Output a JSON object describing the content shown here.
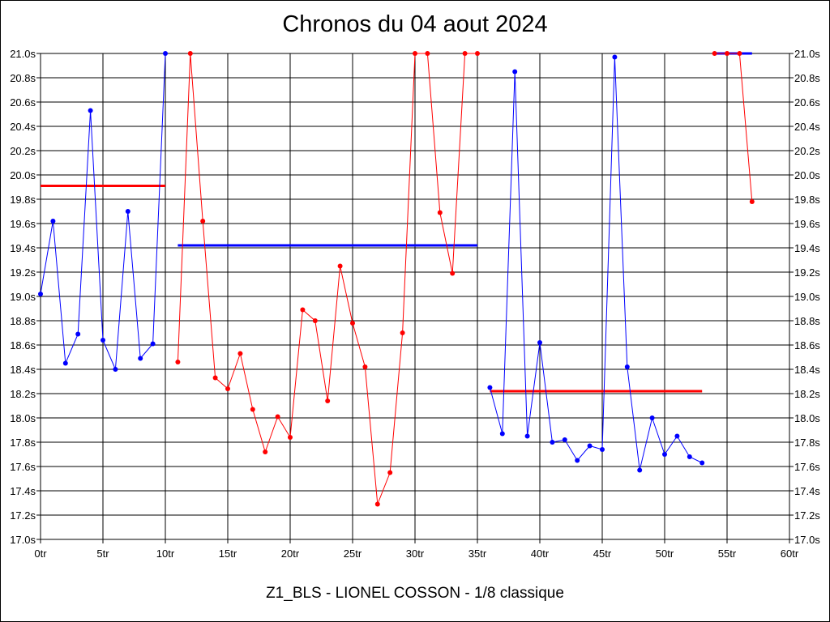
{
  "chart_data": {
    "type": "line",
    "title": "Chronos du 04 aout 2024",
    "subtitle": "Z1_BLS - LIONEL COSSON - 1/8 classique",
    "xlim": [
      0,
      60
    ],
    "ylim": [
      17.0,
      21.0
    ],
    "x_ticks": [
      {
        "value": 0,
        "label": "0tr"
      },
      {
        "value": 5,
        "label": "5tr"
      },
      {
        "value": 10,
        "label": "10tr"
      },
      {
        "value": 15,
        "label": "15tr"
      },
      {
        "value": 20,
        "label": "20tr"
      },
      {
        "value": 25,
        "label": "25tr"
      },
      {
        "value": 30,
        "label": "30tr"
      },
      {
        "value": 35,
        "label": "35tr"
      },
      {
        "value": 40,
        "label": "40tr"
      },
      {
        "value": 45,
        "label": "45tr"
      },
      {
        "value": 50,
        "label": "50tr"
      },
      {
        "value": 55,
        "label": "55tr"
      },
      {
        "value": 60,
        "label": "60tr"
      }
    ],
    "y_ticks": [
      {
        "value": 17.0,
        "label": "17.0s"
      },
      {
        "value": 17.2,
        "label": "17.2s"
      },
      {
        "value": 17.4,
        "label": "17.4s"
      },
      {
        "value": 17.6,
        "label": "17.6s"
      },
      {
        "value": 17.8,
        "label": "17.8s"
      },
      {
        "value": 18.0,
        "label": "18.0s"
      },
      {
        "value": 18.2,
        "label": "18.2s"
      },
      {
        "value": 18.4,
        "label": "18.4s"
      },
      {
        "value": 18.6,
        "label": "18.6s"
      },
      {
        "value": 18.8,
        "label": "18.8s"
      },
      {
        "value": 19.0,
        "label": "19.0s"
      },
      {
        "value": 19.2,
        "label": "19.2s"
      },
      {
        "value": 19.4,
        "label": "19.4s"
      },
      {
        "value": 19.6,
        "label": "19.6s"
      },
      {
        "value": 19.8,
        "label": "19.8s"
      },
      {
        "value": 20.0,
        "label": "20.0s"
      },
      {
        "value": 20.2,
        "label": "20.2s"
      },
      {
        "value": 20.4,
        "label": "20.4s"
      },
      {
        "value": 20.6,
        "label": "20.6s"
      },
      {
        "value": 20.8,
        "label": "20.8s"
      },
      {
        "value": 21.0,
        "label": "21.0s"
      }
    ],
    "grid": true,
    "series": [
      {
        "color": "#0000ff",
        "x": [
          0,
          1,
          2,
          3,
          4,
          5,
          6,
          7,
          8,
          9,
          10
        ],
        "y": [
          19.02,
          19.62,
          18.45,
          18.69,
          20.53,
          18.64,
          18.4,
          19.7,
          18.49,
          18.61,
          21.0
        ],
        "average": 19.42
      },
      {
        "color": "#ff0000",
        "x": [
          11,
          12,
          13,
          14,
          15,
          16,
          17,
          18,
          19,
          20,
          21,
          22,
          23,
          24,
          25,
          26,
          27,
          28,
          29,
          30,
          31,
          32,
          33,
          34,
          35
        ],
        "y": [
          18.46,
          21.0,
          19.62,
          18.33,
          18.24,
          18.53,
          18.07,
          17.72,
          18.01,
          17.84,
          18.89,
          18.8,
          18.14,
          19.25,
          18.78,
          18.42,
          17.29,
          17.55,
          18.7,
          21.0,
          21.0,
          19.69,
          19.19,
          21.0,
          21.0
        ],
        "average": 18.22
      },
      {
        "color": "#0000ff",
        "x": [
          36,
          37,
          38,
          39,
          40,
          41,
          42,
          43,
          44,
          45,
          46,
          47,
          48,
          49,
          50,
          51,
          52,
          53
        ],
        "y": [
          18.25,
          17.87,
          20.85,
          17.85,
          18.62,
          17.8,
          17.82,
          17.65,
          17.77,
          17.74,
          20.97,
          18.42,
          17.57,
          18.0,
          17.7,
          17.85,
          17.68,
          17.63
        ],
        "average": 21.0
      },
      {
        "color": "#ff0000",
        "x": [
          54,
          55,
          56,
          57
        ],
        "y": [
          21.0,
          21.0,
          21.0,
          19.78
        ],
        "average": 19.91
      }
    ],
    "average_lines": [
      {
        "color": "#ff0000",
        "x_start": 0,
        "x_end": 10,
        "y": 19.91
      },
      {
        "color": "#0000ff",
        "x_start": 11,
        "x_end": 35,
        "y": 19.42
      },
      {
        "color": "#ff0000",
        "x_start": 36,
        "x_end": 53,
        "y": 18.22
      },
      {
        "color": "#0000ff",
        "x_start": 54,
        "x_end": 57,
        "y": 21.0
      }
    ]
  }
}
